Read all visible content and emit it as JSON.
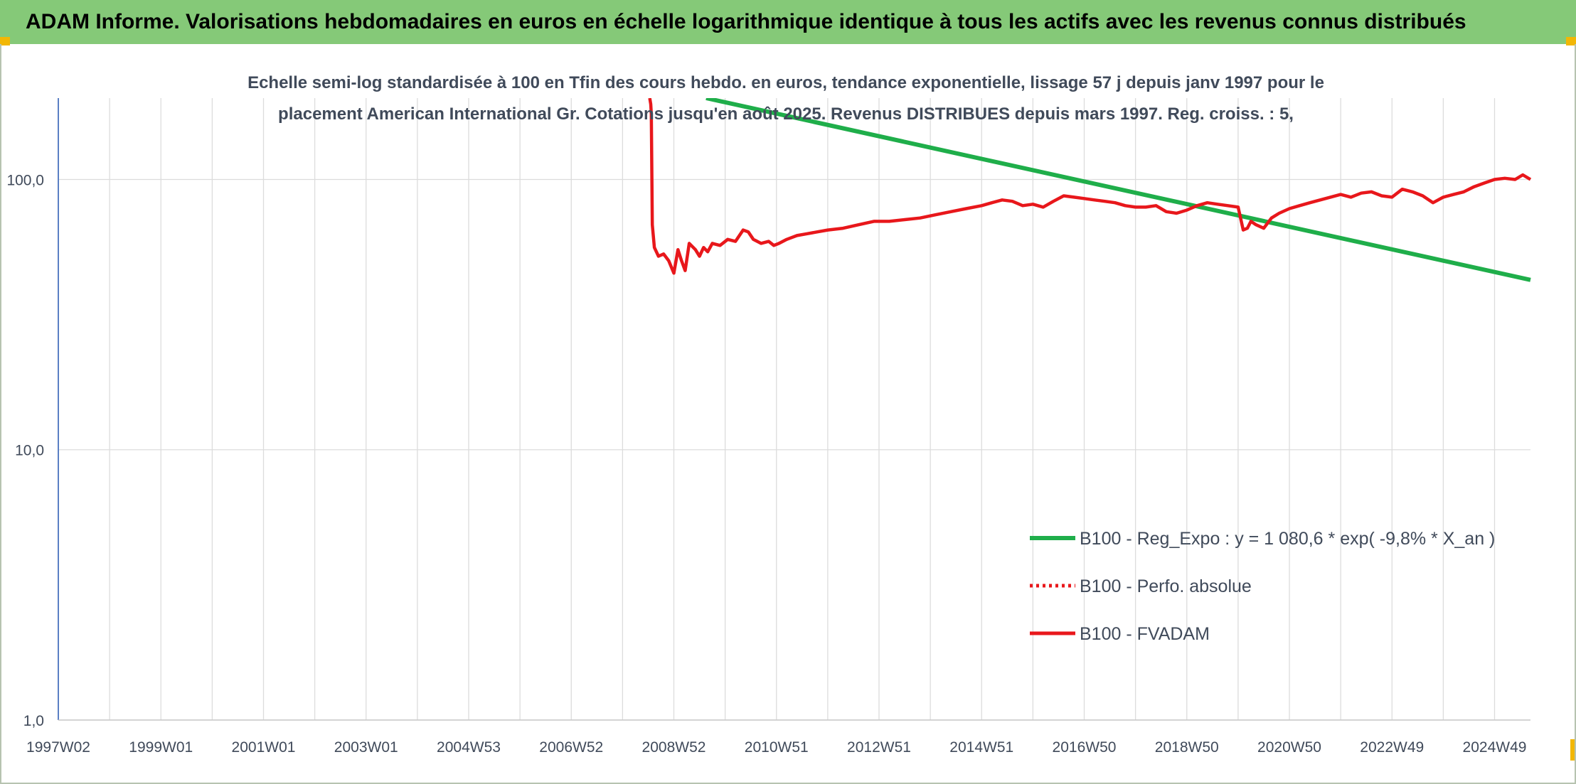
{
  "banner": {
    "title": "ADAM Informe. Valorisations hebdomadaires en euros en échelle logarithmique identique à tous les actifs avec les revenus connus distribués"
  },
  "colors": {
    "banner_bg": "#85c978",
    "corner_accent": "#f2b705",
    "trend": "#1fae4a",
    "fvadam": "#e8171b",
    "perfo": "#e8171b",
    "grid": "#dcdcdc",
    "y_axis": "#5a7fc4",
    "text": "#404a5a"
  },
  "chart_data": {
    "type": "line",
    "title_lines": [
      "Echelle semi-log standardisée à 100 en Tfin des cours hebdo. en euros, tendance exponentielle, lissage 57 j depuis janv 1997 pour le",
      "placement American International Gr. Cotations jusqu'en août 2025. Revenus DISTRIBUES depuis mars 1997. Reg. croiss. : 5,"
    ],
    "y_scale": "log",
    "ylim": [
      1,
      200
    ],
    "y_ticks": [
      {
        "value": 1,
        "label": "1,0"
      },
      {
        "value": 10,
        "label": "10,0"
      },
      {
        "value": 100,
        "label": "100,0"
      }
    ],
    "xlim": [
      1997.0,
      2025.7
    ],
    "x_ticks": [
      {
        "value": 1997.0,
        "label": "1997W02"
      },
      {
        "value": 1999.0,
        "label": "1999W01"
      },
      {
        "value": 2001.0,
        "label": "2001W01"
      },
      {
        "value": 2003.0,
        "label": "2003W01"
      },
      {
        "value": 2005.0,
        "label": "2004W53"
      },
      {
        "value": 2007.0,
        "label": "2006W52"
      },
      {
        "value": 2009.0,
        "label": "2008W52"
      },
      {
        "value": 2011.0,
        "label": "2010W51"
      },
      {
        "value": 2013.0,
        "label": "2012W51"
      },
      {
        "value": 2015.0,
        "label": "2014W51"
      },
      {
        "value": 2017.0,
        "label": "2016W50"
      },
      {
        "value": 2019.0,
        "label": "2018W50"
      },
      {
        "value": 2021.0,
        "label": "2020W50"
      },
      {
        "value": 2023.0,
        "label": "2022W49"
      },
      {
        "value": 2025.0,
        "label": "2024W49"
      }
    ],
    "grid": true,
    "legend_position": "bottom-right",
    "series": [
      {
        "name": "B100 - Reg_Expo : y = 1 080,6 * exp( -9,8% *  X_an )",
        "style": "solid-thick",
        "x": [
          2009.63,
          2025.7
        ],
        "y": [
          200,
          42.5
        ]
      },
      {
        "name": "B100 - Perfo. absolue",
        "style": "dotted",
        "x": [],
        "y": []
      },
      {
        "name": "B100 - FVADAM",
        "style": "solid-thick",
        "x": [
          2008.53,
          2008.55,
          2008.56,
          2008.58,
          2008.62,
          2008.7,
          2008.8,
          2008.9,
          2009.0,
          2009.08,
          2009.15,
          2009.22,
          2009.3,
          2009.42,
          2009.5,
          2009.58,
          2009.66,
          2009.75,
          2009.9,
          2010.05,
          2010.2,
          2010.35,
          2010.45,
          2010.55,
          2010.7,
          2010.85,
          2010.95,
          2011.05,
          2011.2,
          2011.4,
          2011.6,
          2011.8,
          2012.0,
          2012.3,
          2012.6,
          2012.9,
          2013.2,
          2013.5,
          2013.8,
          2014.1,
          2014.4,
          2014.7,
          2015.0,
          2015.2,
          2015.4,
          2015.6,
          2015.8,
          2016.0,
          2016.2,
          2016.4,
          2016.6,
          2016.8,
          2017.0,
          2017.2,
          2017.4,
          2017.6,
          2017.8,
          2018.0,
          2018.2,
          2018.4,
          2018.6,
          2018.8,
          2019.0,
          2019.2,
          2019.4,
          2019.6,
          2019.8,
          2020.0,
          2020.1,
          2020.18,
          2020.25,
          2020.35,
          2020.5,
          2020.65,
          2020.8,
          2021.0,
          2021.2,
          2021.4,
          2021.6,
          2021.8,
          2022.0,
          2022.2,
          2022.4,
          2022.6,
          2022.8,
          2023.0,
          2023.2,
          2023.4,
          2023.6,
          2023.8,
          2024.0,
          2024.2,
          2024.4,
          2024.6,
          2024.8,
          2025.0,
          2025.2,
          2025.4,
          2025.55,
          2025.7
        ],
        "y": [
          200,
          190,
          175,
          68,
          56,
          52,
          53,
          50,
          45,
          55,
          50,
          46,
          58,
          55,
          52,
          56,
          54,
          58,
          57,
          60,
          59,
          65,
          64,
          60,
          58,
          59,
          57,
          58,
          60,
          62,
          63,
          64,
          65,
          66,
          68,
          70,
          70,
          71,
          72,
          74,
          76,
          78,
          80,
          82,
          84,
          83,
          80,
          81,
          79,
          83,
          87,
          86,
          85,
          84,
          83,
          82,
          80,
          79,
          79,
          80,
          76,
          75,
          77,
          80,
          82,
          81,
          80,
          79,
          65,
          66,
          70,
          68,
          66,
          72,
          75,
          78,
          80,
          82,
          84,
          86,
          88,
          86,
          89,
          90,
          87,
          86,
          92,
          90,
          87,
          82,
          86,
          88,
          90,
          94,
          97,
          100,
          101,
          100,
          104,
          100
        ]
      }
    ]
  }
}
